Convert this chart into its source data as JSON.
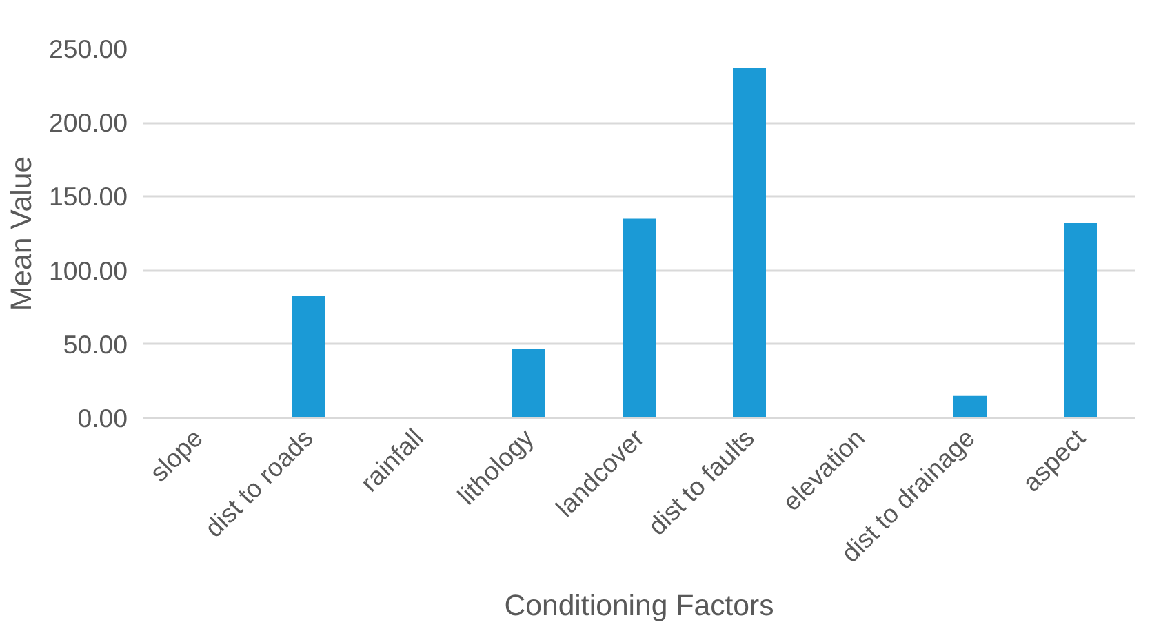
{
  "chart_data": {
    "type": "bar",
    "xlabel": "Conditioning Factors",
    "ylabel": "Mean Value",
    "categories": [
      "slope",
      "dist to roads",
      "rainfall",
      "lithology",
      "landcover",
      "dist to faults",
      "elevation",
      "dist to drainage",
      "aspect"
    ],
    "values": [
      0,
      83,
      0,
      47,
      135,
      237,
      0,
      15,
      132
    ],
    "color": "#1b9ad6",
    "ylim": [
      0,
      250
    ],
    "yticks": [
      {
        "value": 0,
        "label": "0.00"
      },
      {
        "value": 50,
        "label": "50.00"
      },
      {
        "value": 100,
        "label": "100.00"
      },
      {
        "value": 150,
        "label": "150.00"
      },
      {
        "value": 200,
        "label": "200.00"
      },
      {
        "value": 250,
        "label": "250.00"
      }
    ],
    "grid": "y"
  }
}
